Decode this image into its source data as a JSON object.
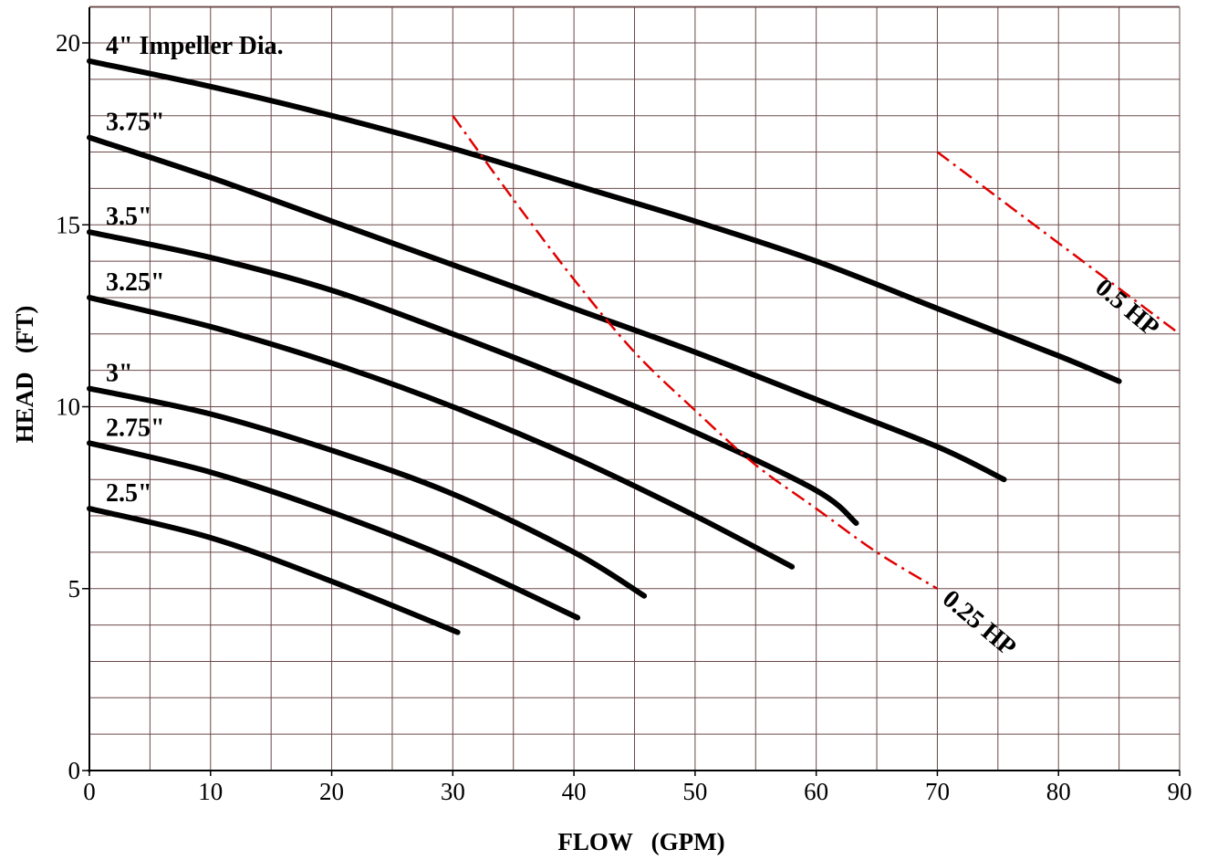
{
  "chart_data": {
    "type": "line",
    "title": "",
    "xlabel": "FLOW   (GPM)",
    "ylabel": "HEAD   (FT)",
    "xlim": [
      0,
      90
    ],
    "ylim": [
      0,
      21
    ],
    "grid": true,
    "x_major_ticks": [
      0,
      10,
      20,
      30,
      40,
      50,
      60,
      70,
      80,
      90
    ],
    "x_minor_ticks": [
      5,
      15,
      25,
      35,
      45,
      55,
      65,
      75,
      85
    ],
    "y_major_ticks": [
      0,
      5,
      10,
      15,
      20
    ],
    "y_minor_ticks": [
      1,
      2,
      3,
      4,
      6,
      7,
      8,
      9,
      11,
      12,
      13,
      14,
      16,
      17,
      18,
      19,
      21
    ],
    "series": [
      {
        "name": "4\" Impeller Dia.",
        "color": "#000000",
        "x": [
          0,
          10,
          20,
          30,
          40,
          50,
          60,
          70,
          80,
          85
        ],
        "y": [
          19.5,
          18.8,
          18.0,
          17.1,
          16.1,
          15.1,
          14.0,
          12.7,
          11.4,
          10.7
        ]
      },
      {
        "name": "3.75\"",
        "color": "#000000",
        "x": [
          0,
          10,
          20,
          30,
          40,
          50,
          60,
          70,
          75.5
        ],
        "y": [
          17.4,
          16.3,
          15.1,
          13.9,
          12.7,
          11.5,
          10.2,
          8.9,
          8.0
        ]
      },
      {
        "name": "3.5\"",
        "color": "#000000",
        "x": [
          0,
          10,
          20,
          30,
          40,
          50,
          60,
          63.3
        ],
        "y": [
          14.8,
          14.1,
          13.2,
          12.0,
          10.7,
          9.3,
          7.7,
          6.8
        ]
      },
      {
        "name": "3.25\"",
        "color": "#000000",
        "x": [
          0,
          10,
          20,
          30,
          40,
          50,
          58
        ],
        "y": [
          13.0,
          12.2,
          11.2,
          10.0,
          8.6,
          7.0,
          5.6
        ]
      },
      {
        "name": "3\"",
        "color": "#000000",
        "x": [
          0,
          10,
          20,
          30,
          40,
          45.8
        ],
        "y": [
          10.5,
          9.8,
          8.8,
          7.6,
          6.0,
          4.8
        ]
      },
      {
        "name": "2.75\"",
        "color": "#000000",
        "x": [
          0,
          10,
          20,
          30,
          40.3
        ],
        "y": [
          9.0,
          8.2,
          7.1,
          5.8,
          4.2
        ]
      },
      {
        "name": "2.5\"",
        "color": "#000000",
        "x": [
          0,
          10,
          20,
          30.4
        ],
        "y": [
          7.2,
          6.4,
          5.2,
          3.8
        ]
      },
      {
        "name": "0.25 HP",
        "color": "#e00000",
        "style": "dash-dot",
        "x": [
          30,
          35,
          40,
          45,
          50,
          55,
          60,
          65,
          70
        ],
        "y": [
          18.0,
          15.7,
          13.5,
          11.5,
          9.9,
          8.4,
          7.2,
          6.0,
          5.0
        ]
      },
      {
        "name": "0.5 HP",
        "color": "#e00000",
        "style": "dash-dot",
        "x": [
          70,
          80,
          90
        ],
        "y": [
          17.0,
          14.5,
          12.0
        ]
      }
    ]
  }
}
